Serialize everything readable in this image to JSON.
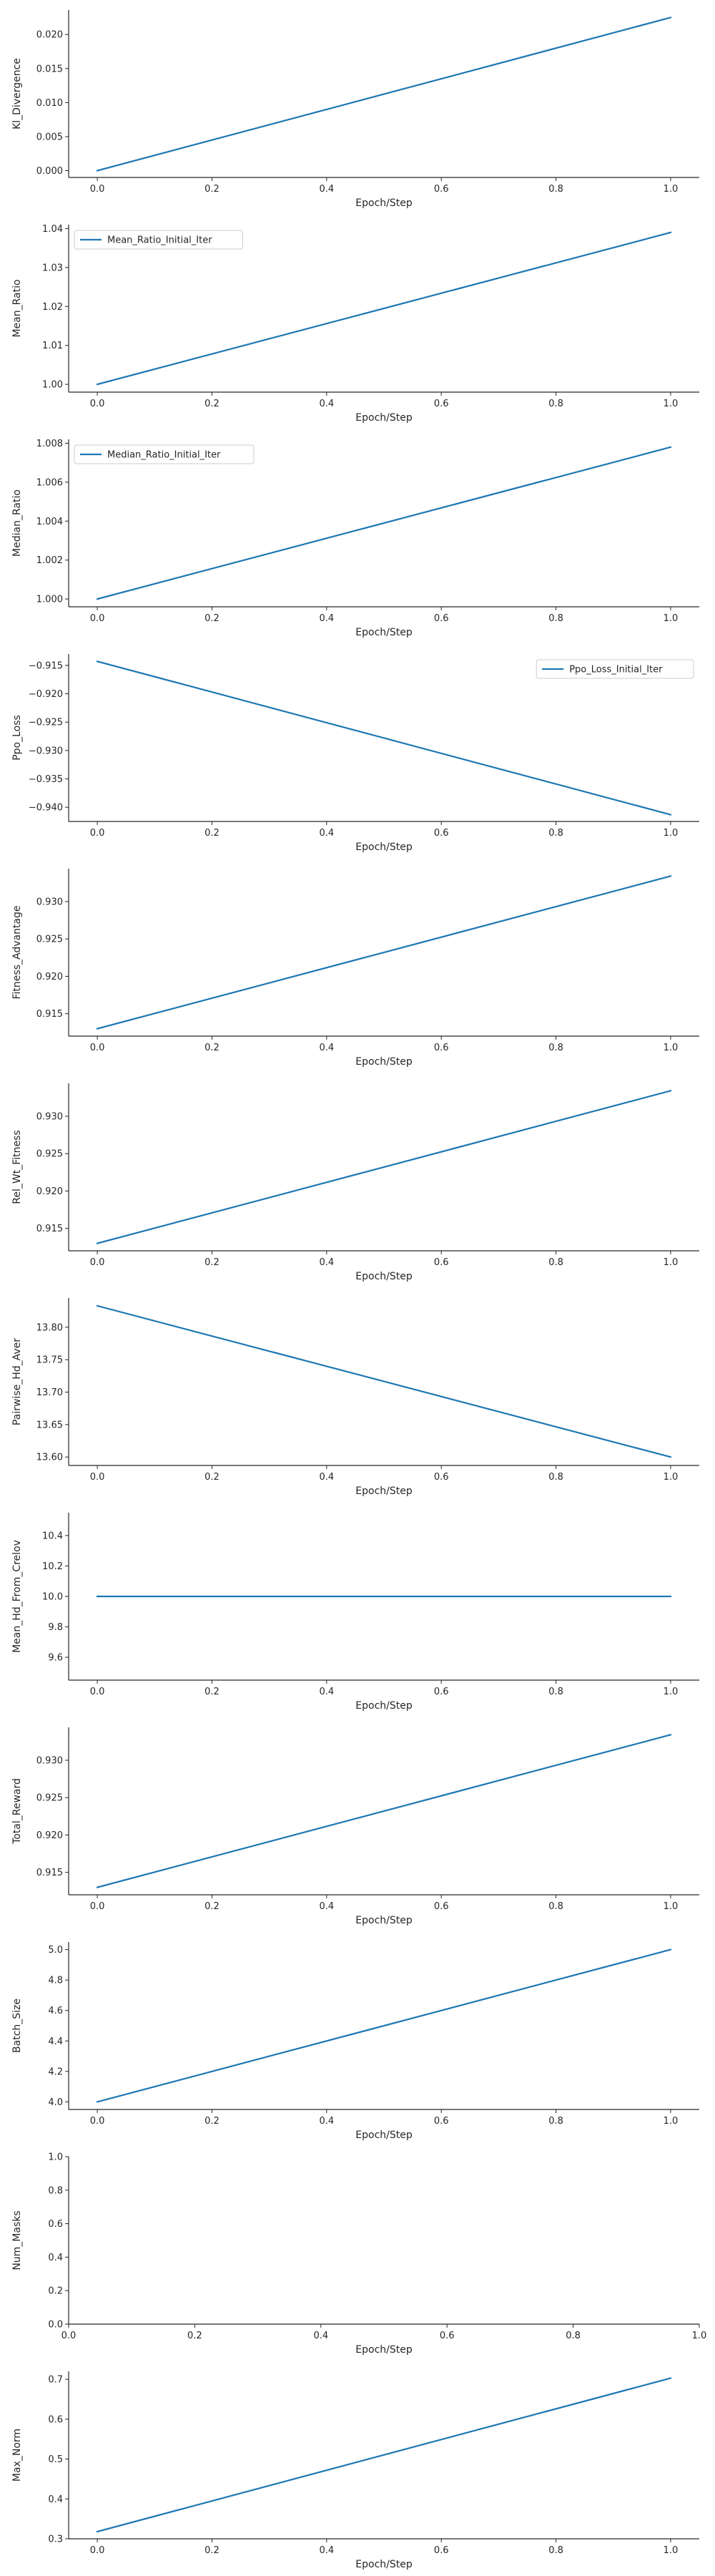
{
  "chart_data": [
    {
      "type": "line",
      "xlabel": "Epoch/Step",
      "ylabel": "Kl_Divergence",
      "xlim": [
        -0.05,
        1.05
      ],
      "ylim": [
        -0.001,
        0.0236
      ],
      "xticks": [
        0.0,
        0.2,
        0.4,
        0.6,
        0.8,
        1.0
      ],
      "xtick_labels": [
        "0.0",
        "0.2",
        "0.4",
        "0.6",
        "0.8",
        "1.0"
      ],
      "yticks": [
        0.0,
        0.005,
        0.01,
        0.015,
        0.02
      ],
      "ytick_labels": [
        "0.000",
        "0.005",
        "0.010",
        "0.015",
        "0.020"
      ],
      "legend": null,
      "color": "#1f77b4",
      "series": [
        {
          "x": [
            0,
            1
          ],
          "y": [
            0.0,
            0.0225
          ]
        }
      ]
    },
    {
      "type": "line",
      "xlabel": "Epoch/Step",
      "ylabel": "Mean_Ratio",
      "xlim": [
        -0.05,
        1.05
      ],
      "ylim": [
        0.998,
        1.041
      ],
      "xticks": [
        0.0,
        0.2,
        0.4,
        0.6,
        0.8,
        1.0
      ],
      "xtick_labels": [
        "0.0",
        "0.2",
        "0.4",
        "0.6",
        "0.8",
        "1.0"
      ],
      "yticks": [
        1.0,
        1.01,
        1.02,
        1.03,
        1.04
      ],
      "ytick_labels": [
        "1.00",
        "1.01",
        "1.02",
        "1.03",
        "1.04"
      ],
      "legend": "upper-left",
      "color": "#1f77b4",
      "series": [
        {
          "name": "Mean_Ratio_Initial_Iter",
          "x": [
            0,
            1
          ],
          "y": [
            1.0,
            1.039
          ]
        }
      ]
    },
    {
      "type": "line",
      "xlabel": "Epoch/Step",
      "ylabel": "Median_Ratio",
      "xlim": [
        -0.05,
        1.05
      ],
      "ylim": [
        0.9996,
        1.0082
      ],
      "xticks": [
        0.0,
        0.2,
        0.4,
        0.6,
        0.8,
        1.0
      ],
      "xtick_labels": [
        "0.0",
        "0.2",
        "0.4",
        "0.6",
        "0.8",
        "1.0"
      ],
      "yticks": [
        1.0,
        1.002,
        1.004,
        1.006,
        1.008
      ],
      "ytick_labels": [
        "1.000",
        "1.002",
        "1.004",
        "1.006",
        "1.008"
      ],
      "legend": "upper-left",
      "color": "#1f77b4",
      "series": [
        {
          "name": "Median_Ratio_Initial_Iter",
          "x": [
            0,
            1
          ],
          "y": [
            1.0,
            1.0078
          ]
        }
      ]
    },
    {
      "type": "line",
      "xlabel": "Epoch/Step",
      "ylabel": "Ppo_Loss",
      "xlim": [
        -0.05,
        1.05
      ],
      "ylim": [
        -0.9425,
        -0.913
      ],
      "xticks": [
        0.0,
        0.2,
        0.4,
        0.6,
        0.8,
        1.0
      ],
      "xtick_labels": [
        "0.0",
        "0.2",
        "0.4",
        "0.6",
        "0.8",
        "1.0"
      ],
      "yticks": [
        -0.915,
        -0.92,
        -0.925,
        -0.93,
        -0.935,
        -0.94
      ],
      "ytick_labels": [
        "−0.915",
        "−0.920",
        "−0.925",
        "−0.930",
        "−0.935",
        "−0.940"
      ],
      "legend": "upper-right",
      "color": "#1f77b4",
      "series": [
        {
          "name": "Ppo_Loss_Initial_Iter",
          "x": [
            0,
            1
          ],
          "y": [
            -0.9143,
            -0.9413
          ]
        }
      ]
    },
    {
      "type": "line",
      "xlabel": "Epoch/Step",
      "ylabel": "Fitness_Advantage",
      "xlim": [
        -0.05,
        1.05
      ],
      "ylim": [
        0.912,
        0.9344
      ],
      "xticks": [
        0.0,
        0.2,
        0.4,
        0.6,
        0.8,
        1.0
      ],
      "xtick_labels": [
        "0.0",
        "0.2",
        "0.4",
        "0.6",
        "0.8",
        "1.0"
      ],
      "yticks": [
        0.915,
        0.92,
        0.925,
        0.93
      ],
      "ytick_labels": [
        "0.915",
        "0.920",
        "0.925",
        "0.930"
      ],
      "legend": null,
      "color": "#1f77b4",
      "series": [
        {
          "x": [
            0,
            1
          ],
          "y": [
            0.913,
            0.9334
          ]
        }
      ]
    },
    {
      "type": "line",
      "xlabel": "Epoch/Step",
      "ylabel": "Rel_Wt_Fitness",
      "xlim": [
        -0.05,
        1.05
      ],
      "ylim": [
        0.912,
        0.9344
      ],
      "xticks": [
        0.0,
        0.2,
        0.4,
        0.6,
        0.8,
        1.0
      ],
      "xtick_labels": [
        "0.0",
        "0.2",
        "0.4",
        "0.6",
        "0.8",
        "1.0"
      ],
      "yticks": [
        0.915,
        0.92,
        0.925,
        0.93
      ],
      "ytick_labels": [
        "0.915",
        "0.920",
        "0.925",
        "0.930"
      ],
      "legend": null,
      "color": "#1f77b4",
      "series": [
        {
          "x": [
            0,
            1
          ],
          "y": [
            0.913,
            0.9334
          ]
        }
      ]
    },
    {
      "type": "line",
      "xlabel": "Epoch/Step",
      "ylabel": "Pairwise_Hd_Aver",
      "xlim": [
        -0.05,
        1.05
      ],
      "ylim": [
        13.587,
        13.845
      ],
      "xticks": [
        0.0,
        0.2,
        0.4,
        0.6,
        0.8,
        1.0
      ],
      "xtick_labels": [
        "0.0",
        "0.2",
        "0.4",
        "0.6",
        "0.8",
        "1.0"
      ],
      "yticks": [
        13.6,
        13.65,
        13.7,
        13.75,
        13.8
      ],
      "ytick_labels": [
        "13.60",
        "13.65",
        "13.70",
        "13.75",
        "13.80"
      ],
      "legend": null,
      "color": "#1f77b4",
      "series": [
        {
          "x": [
            0,
            1
          ],
          "y": [
            13.833,
            13.6
          ]
        }
      ]
    },
    {
      "type": "line",
      "xlabel": "Epoch/Step",
      "ylabel": "Mean_Hd_From_Crelov",
      "xlim": [
        -0.05,
        1.05
      ],
      "ylim": [
        9.45,
        10.55
      ],
      "xticks": [
        0.0,
        0.2,
        0.4,
        0.6,
        0.8,
        1.0
      ],
      "xtick_labels": [
        "0.0",
        "0.2",
        "0.4",
        "0.6",
        "0.8",
        "1.0"
      ],
      "yticks": [
        9.6,
        9.8,
        10.0,
        10.2,
        10.4
      ],
      "ytick_labels": [
        "9.6",
        "9.8",
        "10.0",
        "10.2",
        "10.4"
      ],
      "legend": null,
      "color": "#1f77b4",
      "series": [
        {
          "x": [
            0,
            1
          ],
          "y": [
            10.0,
            10.0
          ]
        }
      ]
    },
    {
      "type": "line",
      "xlabel": "Epoch/Step",
      "ylabel": "Total_Reward",
      "xlim": [
        -0.05,
        1.05
      ],
      "ylim": [
        0.912,
        0.9344
      ],
      "xticks": [
        0.0,
        0.2,
        0.4,
        0.6,
        0.8,
        1.0
      ],
      "xtick_labels": [
        "0.0",
        "0.2",
        "0.4",
        "0.6",
        "0.8",
        "1.0"
      ],
      "yticks": [
        0.915,
        0.92,
        0.925,
        0.93
      ],
      "ytick_labels": [
        "0.915",
        "0.920",
        "0.925",
        "0.930"
      ],
      "legend": null,
      "color": "#1f77b4",
      "series": [
        {
          "x": [
            0,
            1
          ],
          "y": [
            0.913,
            0.9334
          ]
        }
      ]
    },
    {
      "type": "line",
      "xlabel": "Epoch/Step",
      "ylabel": "Batch_Size",
      "xlim": [
        -0.05,
        1.05
      ],
      "ylim": [
        3.95,
        5.05
      ],
      "xticks": [
        0.0,
        0.2,
        0.4,
        0.6,
        0.8,
        1.0
      ],
      "xtick_labels": [
        "0.0",
        "0.2",
        "0.4",
        "0.6",
        "0.8",
        "1.0"
      ],
      "yticks": [
        4.0,
        4.2,
        4.4,
        4.6,
        4.8,
        5.0
      ],
      "ytick_labels": [
        "4.0",
        "4.2",
        "4.4",
        "4.6",
        "4.8",
        "5.0"
      ],
      "legend": null,
      "color": "#1f77b4",
      "series": [
        {
          "x": [
            0,
            1
          ],
          "y": [
            4.0,
            5.0
          ]
        }
      ]
    },
    {
      "type": "line",
      "xlabel": "Epoch/Step",
      "ylabel": "Num_Masks",
      "xlim": [
        0.0,
        1.0
      ],
      "ylim": [
        0.0,
        1.0
      ],
      "xticks": [
        0.0,
        0.2,
        0.4,
        0.6,
        0.8,
        1.0
      ],
      "xtick_labels": [
        "0.0",
        "0.2",
        "0.4",
        "0.6",
        "0.8",
        "1.0"
      ],
      "yticks": [
        0.0,
        0.2,
        0.4,
        0.6,
        0.8,
        1.0
      ],
      "ytick_labels": [
        "0.0",
        "0.2",
        "0.4",
        "0.6",
        "0.8",
        "1.0"
      ],
      "legend": null,
      "color": "#1f77b4",
      "series": []
    },
    {
      "type": "line",
      "xlabel": "Epoch/Step",
      "ylabel": "Max_Norm",
      "xlim": [
        -0.05,
        1.05
      ],
      "ylim": [
        0.3,
        0.72
      ],
      "xticks": [
        0.0,
        0.2,
        0.4,
        0.6,
        0.8,
        1.0
      ],
      "xtick_labels": [
        "0.0",
        "0.2",
        "0.4",
        "0.6",
        "0.8",
        "1.0"
      ],
      "yticks": [
        0.3,
        0.4,
        0.5,
        0.6,
        0.7
      ],
      "ytick_labels": [
        "0.3",
        "0.4",
        "0.5",
        "0.6",
        "0.7"
      ],
      "legend": null,
      "color": "#1f77b4",
      "series": [
        {
          "x": [
            0,
            1
          ],
          "y": [
            0.318,
            0.703
          ]
        }
      ]
    }
  ]
}
